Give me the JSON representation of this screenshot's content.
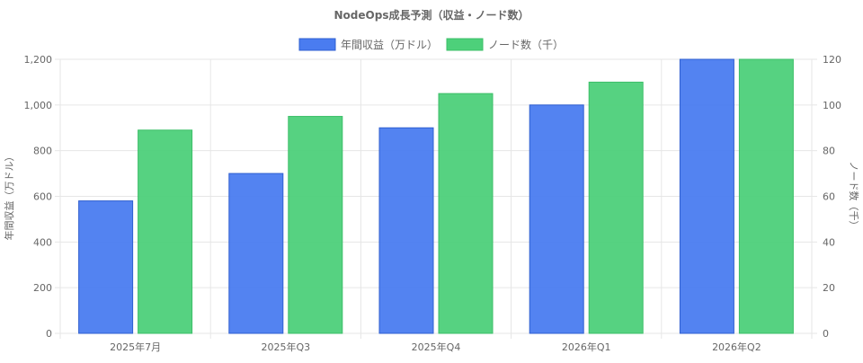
{
  "chart_data": {
    "type": "bar",
    "title": "NodeOps成長予測（収益・ノード数）",
    "categories": [
      "2025年7月",
      "2025年Q3",
      "2025年Q4",
      "2026年Q1",
      "2026年Q2"
    ],
    "series": [
      {
        "name": "年間収益（万ドル）",
        "axis": "left",
        "values": [
          580,
          700,
          900,
          1000,
          1200
        ],
        "color": "#4a7cf0",
        "border": "#2f5fd0"
      },
      {
        "name": "ノード数（千）",
        "axis": "right",
        "values": [
          89,
          95,
          105,
          110,
          120
        ],
        "color": "#4dd07a",
        "border": "#3cbf68"
      }
    ],
    "y_left": {
      "label": "年間収益（万ドル）",
      "ylim": [
        0,
        1200
      ],
      "ticks": [
        "0",
        "200",
        "400",
        "600",
        "800",
        "1,000",
        "1,200"
      ]
    },
    "y_right": {
      "label": "ノード数（千）",
      "ylim": [
        0,
        120
      ],
      "ticks": [
        "0",
        "20",
        "40",
        "60",
        "80",
        "100",
        "120"
      ]
    },
    "grid": true,
    "legend": "top-center"
  }
}
